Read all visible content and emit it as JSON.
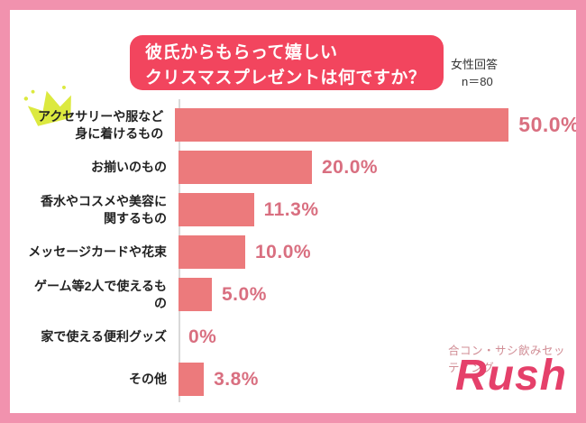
{
  "header": {
    "title_line1": "彼氏からもらって嬉しい",
    "title_line2": "クリスマスプレゼントは何ですか？",
    "respondents_line1": "女性回答",
    "respondents_line2": "n＝80"
  },
  "chart_data": {
    "type": "bar",
    "orientation": "horizontal",
    "title": "彼氏からもらって嬉しいクリスマスプレゼントは何ですか？",
    "sample_note": "女性回答 n＝80",
    "categories": [
      "アクセサリーや服など\n身に着けるもの",
      "お揃いのもの",
      "香水やコスメや美容に\n関するもの",
      "メッセージカードや花束",
      "ゲーム等2人で使えるもの",
      "家で使える便利グッズ",
      "その他"
    ],
    "values": [
      50.0,
      20.0,
      11.3,
      10.0,
      5.0,
      0,
      3.8
    ],
    "value_labels": [
      "50.0%",
      "20.0%",
      "11.3%",
      "10.0%",
      "5.0%",
      "0%",
      "3.8%"
    ],
    "xlim": [
      0,
      50
    ],
    "grid": false,
    "legend": "none",
    "bar_color": "#EC7A7C",
    "value_label_color": "#D96F80",
    "top_item_marker": "crown"
  },
  "logo": {
    "tagline": "合コン・サシ飲みセッティング",
    "brand": "Rush"
  },
  "colors": {
    "frame_border": "#F192AE",
    "title_badge_bg": "#F2455E",
    "title_text": "#FFFFFF",
    "category_text": "#222222",
    "bar": "#EC7A7C",
    "value_text": "#D96F80",
    "axis_line": "#D9D9D9",
    "crown": "#DCE93F",
    "logo_tagline": "#D18D95",
    "logo_brand": "#E5406A"
  }
}
